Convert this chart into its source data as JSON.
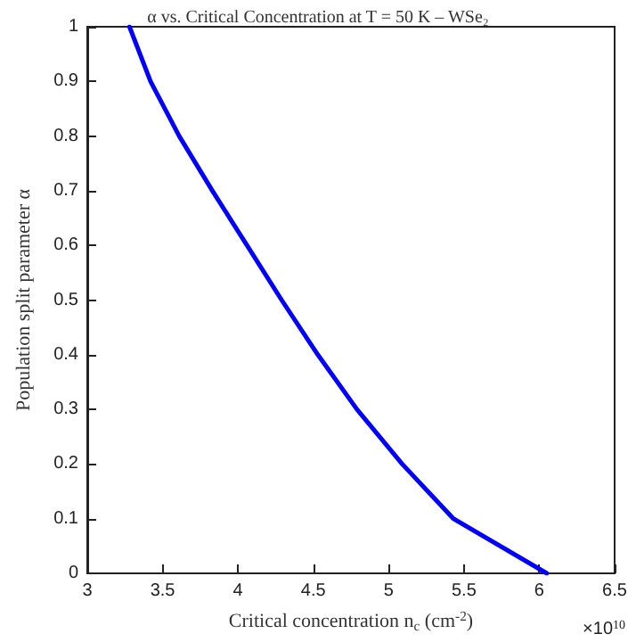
{
  "chart_data": {
    "type": "line",
    "title": "α vs. Critical Concentration at T = 50 K – WSe₂",
    "xlabel": "Critical concentration n$_{c}$ (cm$^{-2}$)",
    "ylabel": "Population split parameter α",
    "annotations": [
      "×10$^{10}$"
    ],
    "series": [
      {
        "color": "#0000ff",
        "x": [
          3.28,
          3.42,
          3.61,
          3.83,
          4.06,
          4.29,
          4.53,
          4.79,
          5.09,
          5.43,
          6.05
        ],
        "values": [
          1,
          0.9,
          0.8,
          0.7,
          0.6,
          0.5,
          0.4,
          0.3,
          0.2,
          0.1,
          0
        ]
      }
    ],
    "xlim": [
      3,
      6.5
    ],
    "xticks": [
      3,
      3.5,
      4,
      4.5,
      5,
      5.5,
      6,
      6.5
    ],
    "ylim": [
      0,
      1
    ],
    "yticks": [
      0,
      0.1,
      0.2,
      0.3,
      0.4,
      0.5,
      0.6,
      0.7,
      0.8,
      0.9,
      1
    ],
    "grid": false,
    "marker": "none",
    "line_style": "solid"
  }
}
